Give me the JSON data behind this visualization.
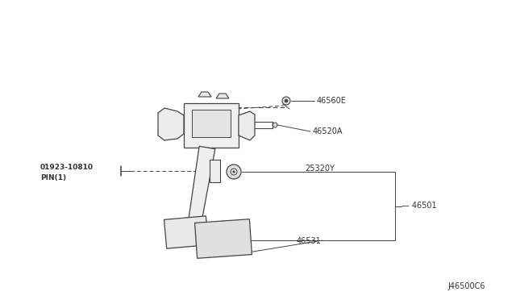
{
  "bg_color": "#ffffff",
  "line_color": "#444444",
  "text_color": "#333333",
  "diagram_code": "J46500C6",
  "figsize": [
    6.4,
    3.72
  ],
  "dpi": 100,
  "xlim": [
    0,
    640
  ],
  "ylim": [
    0,
    372
  ]
}
